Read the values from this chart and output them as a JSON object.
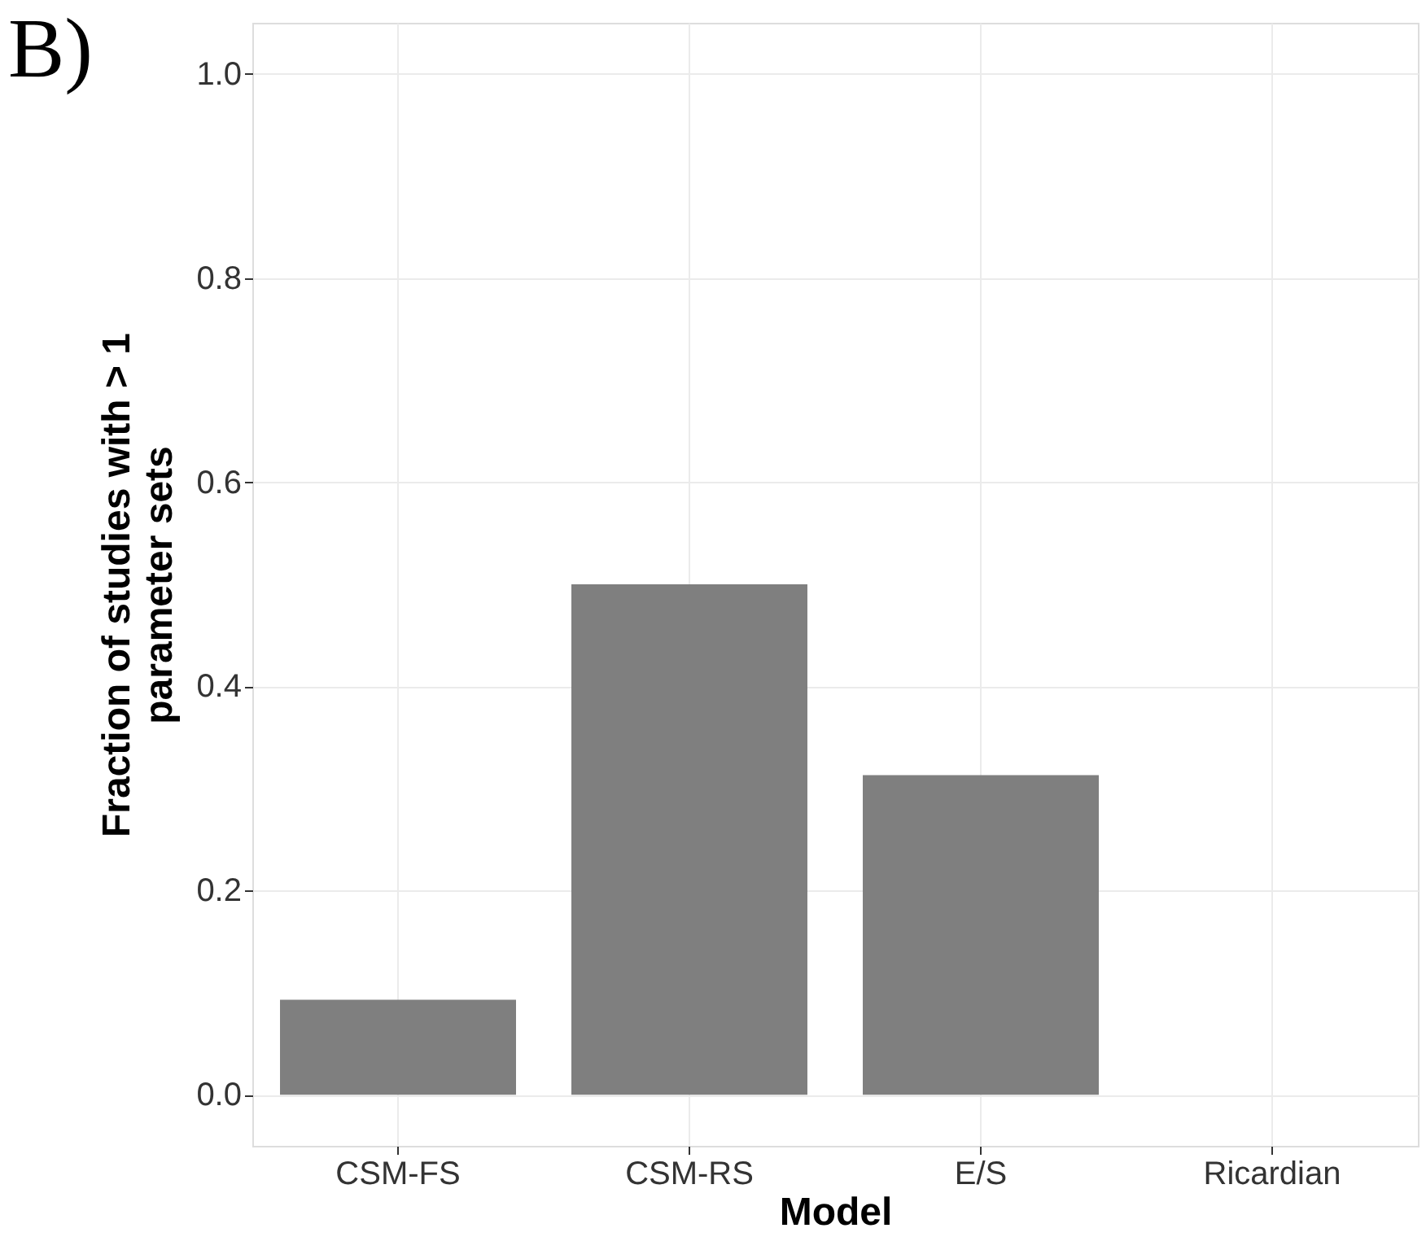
{
  "chart_data": {
    "type": "bar",
    "xlabel": "Model",
    "ylabel": "Fraction of studies with > 1\nparameter sets",
    "categories": [
      "CSM-FS",
      "CSM-RS",
      "E/S",
      "Ricardian"
    ],
    "values": [
      0.093,
      0.5,
      0.313,
      0.0
    ],
    "color": "#7f7f7f",
    "ylim": [
      -0.05,
      1.05
    ],
    "yticks": [
      {
        "value": 0,
        "label": "0.0"
      },
      {
        "value": 0.2,
        "label": "0.2"
      },
      {
        "value": 0.4,
        "label": "0.4"
      },
      {
        "value": 0.6,
        "label": "0.6"
      },
      {
        "value": 0.8,
        "label": "0.8"
      },
      {
        "value": 1,
        "label": "1.0"
      }
    ],
    "grid": true,
    "annotations": [
      "B)"
    ]
  }
}
